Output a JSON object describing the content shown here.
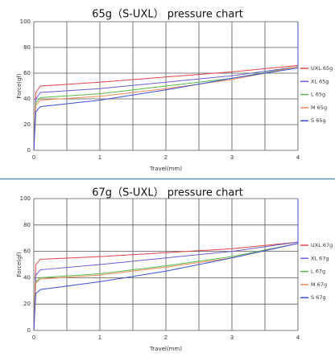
{
  "chart_data": [
    {
      "type": "line",
      "title": "65g（S-UXL） pressure chart",
      "x_label": "Travel(mm)",
      "y_label": "Force(gf)",
      "x": [
        0,
        0.03,
        0.1,
        1,
        2,
        3,
        4,
        4
      ],
      "series": [
        {
          "name": "UXL 65g",
          "color": "#e0454a",
          "values": [
            0,
            45,
            50,
            53,
            57,
            61,
            66,
            100
          ]
        },
        {
          "name": "XL 65g",
          "color": "#6b5bd6",
          "values": [
            0,
            40,
            45,
            48,
            53,
            58,
            65,
            100
          ]
        },
        {
          "name": "L 65g",
          "color": "#54b848",
          "values": [
            0,
            37,
            41,
            44,
            50,
            56,
            65,
            100
          ]
        },
        {
          "name": "M 65g",
          "color": "#f08a5a",
          "values": [
            0,
            35,
            39,
            42,
            48,
            55,
            65,
            100
          ]
        },
        {
          "name": "S 65g",
          "color": "#3b4fd8",
          "values": [
            0,
            30,
            34,
            39,
            47,
            56,
            64,
            100
          ]
        }
      ],
      "xlim": [
        0,
        4
      ],
      "xticks": [
        0,
        1,
        2,
        3,
        4
      ],
      "x_grid": [
        0,
        0.5,
        1,
        1.5,
        2,
        2.5,
        3,
        3.5,
        4
      ],
      "ylim": [
        0,
        100
      ],
      "yticks": [
        0,
        20,
        40,
        60,
        80,
        100
      ],
      "grid": true,
      "legend": "right"
    },
    {
      "type": "line",
      "title": "67g（S-UXL） pressure chart",
      "x_label": "Travel(mm)",
      "y_label": "Force(gf)",
      "x": [
        0,
        0.03,
        0.1,
        1,
        2,
        3,
        4,
        4
      ],
      "series": [
        {
          "name": "UXL 67g",
          "color": "#e0454a",
          "values": [
            0,
            50,
            54,
            56,
            59,
            62,
            67,
            100
          ]
        },
        {
          "name": "XL 67g",
          "color": "#6b5bd6",
          "values": [
            0,
            42,
            46,
            50,
            55,
            60,
            67,
            100
          ]
        },
        {
          "name": "L 67g",
          "color": "#54b848",
          "values": [
            0,
            37,
            40,
            43,
            49,
            56,
            66,
            100
          ]
        },
        {
          "name": "M 67g",
          "color": "#f08a5a",
          "values": [
            0,
            36,
            39,
            42,
            48,
            55,
            66,
            100
          ]
        },
        {
          "name": "S 67g",
          "color": "#3b4fd8",
          "values": [
            0,
            28,
            31,
            37,
            45,
            55,
            66,
            100
          ]
        }
      ],
      "xlim": [
        0,
        4
      ],
      "xticks": [
        0,
        1,
        2,
        3,
        4
      ],
      "x_grid": [
        0,
        0.5,
        1,
        1.5,
        2,
        2.5,
        3,
        3.5,
        4
      ],
      "ylim": [
        0,
        100
      ],
      "yticks": [
        0,
        20,
        40,
        60,
        80,
        100
      ],
      "grid": true,
      "legend": "right"
    }
  ]
}
